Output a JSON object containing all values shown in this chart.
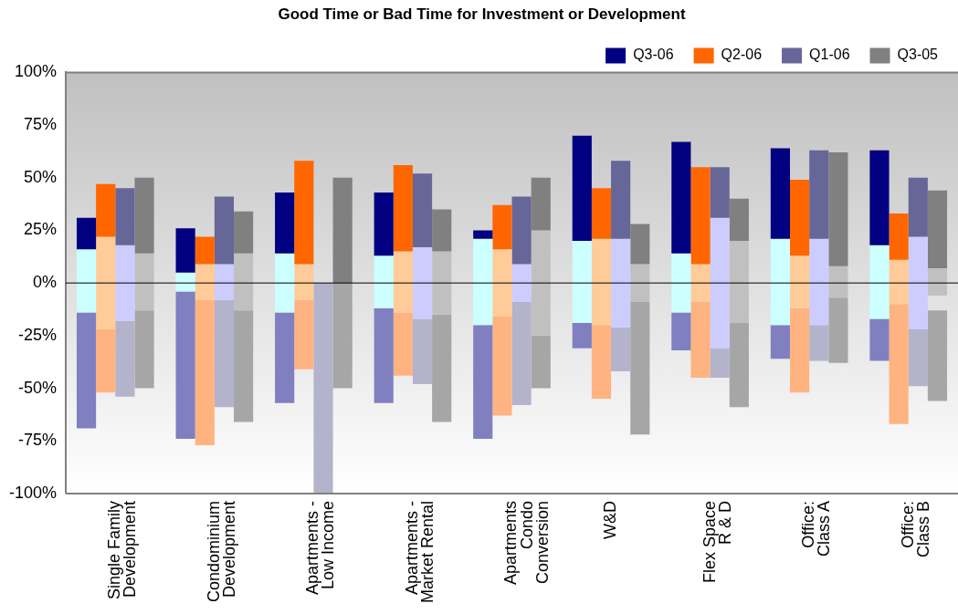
{
  "chart_data": {
    "type": "bar",
    "title": "Good Time or Bad Time for Investment or Development",
    "categories": [
      "Single Family\nDevelopment",
      "Condominium\nDevelopment",
      "Apartments -\nLow Income",
      "Apartments -\nMarket Rental",
      "Apartments\nCondo\nConversion",
      "W&D",
      "Flex Space\nR & D",
      "Office:\nClass A",
      "Office:\nClass B"
    ],
    "ylim": [
      -100,
      100
    ],
    "yticks": [
      {
        "value": -100,
        "label": "-100%"
      },
      {
        "value": -75,
        "label": "-75%"
      },
      {
        "value": -50,
        "label": "-50%"
      },
      {
        "value": -25,
        "label": "-25%"
      },
      {
        "value": 0,
        "label": "0%"
      },
      {
        "value": 25,
        "label": "25%"
      },
      {
        "value": 50,
        "label": "50%"
      },
      {
        "value": 75,
        "label": "75%"
      },
      {
        "value": 100,
        "label": "100%"
      }
    ],
    "legend": "top right",
    "grid": false,
    "ref_lines": [
      {
        "axis": "y",
        "value": 0,
        "color": "#000000"
      }
    ],
    "series": [
      {
        "name": "Q3-06",
        "color": "#000080",
        "base": [
          16,
          5,
          14,
          13,
          21,
          20,
          14,
          21,
          18
        ],
        "values": [
          15,
          21,
          29,
          30,
          4,
          50,
          53,
          43,
          45
        ]
      },
      {
        "color": "#ccffff",
        "base": [
          -14,
          -4,
          -14,
          -12,
          -20,
          -19,
          -14,
          -20,
          -17
        ],
        "values": [
          30,
          9,
          28,
          25,
          41,
          39,
          28,
          41,
          35
        ]
      },
      {
        "color": "#8080c0",
        "base": [
          -69,
          -74,
          -57,
          -57,
          -74,
          -31,
          -32,
          -36,
          -37
        ],
        "values": [
          55,
          70,
          43,
          45,
          54,
          12,
          18,
          16,
          20
        ]
      },
      {
        "name": "Q2-06",
        "color": "#ff6600",
        "base": [
          22,
          9,
          9,
          15,
          16,
          21,
          9,
          13,
          11
        ],
        "values": [
          25,
          13,
          49,
          41,
          21,
          24,
          46,
          36,
          22
        ]
      },
      {
        "color": "#ffcc99",
        "base": [
          -22,
          -8,
          -8,
          -14,
          -16,
          -20,
          -9,
          -12,
          -10
        ],
        "values": [
          44,
          17,
          17,
          29,
          32,
          41,
          18,
          25,
          21
        ]
      },
      {
        "color": "#ffb380",
        "base": [
          -52,
          -77,
          -41,
          -44,
          -63,
          -55,
          -45,
          -52,
          -67
        ],
        "values": [
          30,
          69,
          33,
          30,
          47,
          35,
          36,
          40,
          57
        ]
      },
      {
        "name": "Q1-06",
        "color": "#666699",
        "base": [
          18,
          9,
          null,
          17,
          9,
          21,
          31,
          21,
          22
        ],
        "values": [
          27,
          32,
          null,
          35,
          32,
          37,
          24,
          42,
          28
        ]
      },
      {
        "color": "#ccccff",
        "base": [
          -18,
          -8,
          null,
          -17,
          -9,
          -21,
          -31,
          -20,
          -22
        ],
        "values": [
          36,
          17,
          null,
          34,
          18,
          42,
          62,
          41,
          44
        ]
      },
      {
        "color": "#b3b3cc",
        "base": [
          -54,
          -59,
          -100,
          -48,
          -58,
          -42,
          -45,
          -37,
          -49
        ],
        "values": [
          36,
          51,
          100,
          31,
          49,
          21,
          14,
          17,
          27
        ]
      },
      {
        "name": "Q3-05",
        "color": "#808080",
        "base": [
          14,
          14,
          0,
          15,
          25,
          9,
          20,
          8,
          7
        ],
        "values": [
          36,
          20,
          50,
          20,
          25,
          19,
          20,
          54,
          37
        ]
      },
      {
        "color": "#c0c0c0",
        "base": [
          -13,
          -13,
          null,
          -15,
          -25,
          -9,
          -19,
          -7,
          -6
        ],
        "values": [
          27,
          27,
          null,
          30,
          50,
          18,
          39,
          15,
          13
        ]
      },
      {
        "color": "#a6a6a6",
        "base": [
          -50,
          -66,
          -50,
          -66,
          -50,
          -72,
          -59,
          -38,
          -56
        ],
        "values": [
          37,
          53,
          50,
          51,
          25,
          63,
          40,
          31,
          43
        ]
      }
    ]
  }
}
